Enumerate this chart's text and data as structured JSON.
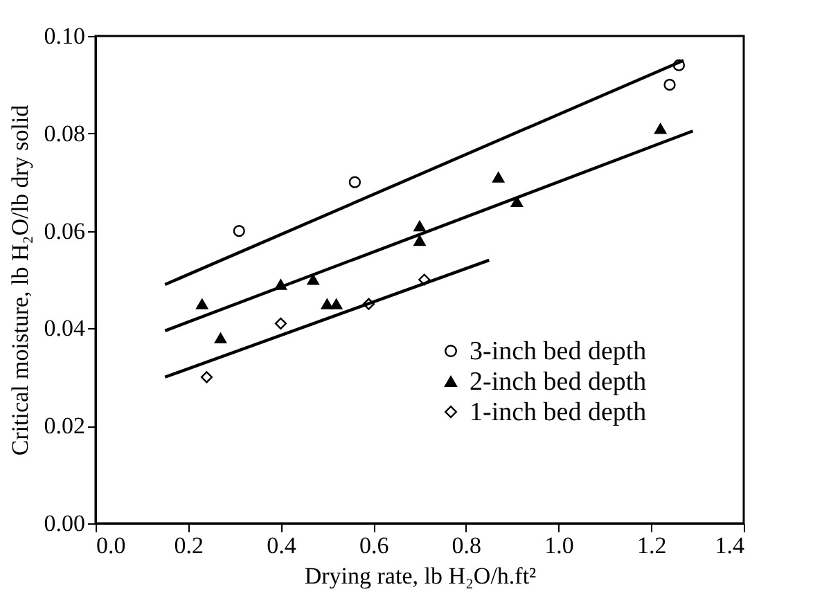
{
  "chart_data": {
    "type": "scatter",
    "xlabel": "Drying rate, lb H₂O/h.ft²",
    "ylabel": "Critical moisture, lb H₂O/lb dry solid",
    "xlim": [
      0,
      1.4
    ],
    "ylim": [
      0,
      0.1
    ],
    "xticks": [
      {
        "value": 0,
        "label": "0.0"
      },
      {
        "value": 0.2,
        "label": "0.2"
      },
      {
        "value": 0.4,
        "label": "0.4"
      },
      {
        "value": 0.6,
        "label": "0.6"
      },
      {
        "value": 0.8,
        "label": "0.8"
      },
      {
        "value": 1,
        "label": "1.0"
      },
      {
        "value": 1.2,
        "label": "1.2"
      },
      {
        "value": 1.4,
        "label": "1.4"
      }
    ],
    "yticks": [
      {
        "value": 0,
        "label": "0.00"
      },
      {
        "value": 0.02,
        "label": "0.02"
      },
      {
        "value": 0.04,
        "label": "0.04"
      },
      {
        "value": 0.06,
        "label": "0.06"
      },
      {
        "value": 0.08,
        "label": "0.08"
      },
      {
        "value": 0.1,
        "label": "0.10"
      }
    ],
    "grid": false,
    "legend": "bottom right",
    "series": [
      {
        "name": "3-inch bed depth",
        "marker": "circle",
        "color": "#000000",
        "x": [
          0.31,
          0.56,
          1.24,
          1.26
        ],
        "values": [
          0.06,
          0.07,
          0.09,
          0.094
        ]
      },
      {
        "name": "2-inch bed depth",
        "marker": "triangle",
        "color": "#000000",
        "x": [
          0.23,
          0.27,
          0.4,
          0.47,
          0.5,
          0.52,
          0.7,
          0.7,
          0.87,
          0.91,
          1.22
        ],
        "values": [
          0.045,
          0.038,
          0.049,
          0.05,
          0.045,
          0.045,
          0.061,
          0.058,
          0.071,
          0.066,
          0.081
        ]
      },
      {
        "name": "1-inch bed depth",
        "marker": "diamond",
        "color": "#000000",
        "x": [
          0.24,
          0.4,
          0.59,
          0.71
        ],
        "values": [
          0.03,
          0.041,
          0.045,
          0.05
        ]
      },
      {
        "type": "line",
        "color": "#000000",
        "x": [
          0.15,
          1.27
        ],
        "values": [
          0.049,
          0.095
        ]
      },
      {
        "type": "line",
        "color": "#000000",
        "x": [
          0.15,
          1.29
        ],
        "values": [
          0.0395,
          0.0805
        ]
      },
      {
        "type": "line",
        "color": "#000000",
        "x": [
          0.15,
          0.85
        ],
        "values": [
          0.03,
          0.054
        ]
      }
    ]
  }
}
